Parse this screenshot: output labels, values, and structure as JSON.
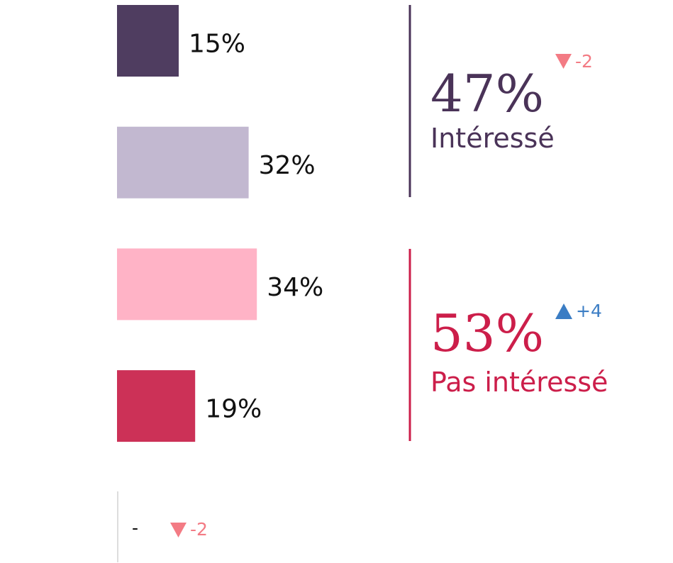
{
  "chart_data": {
    "type": "bar",
    "orientation": "horizontal",
    "values": [
      15,
      32,
      34,
      19
    ],
    "value_labels": [
      "15%",
      "32%",
      "34%",
      "19%"
    ],
    "colors": [
      "#4f3d60",
      "#c2b8d0",
      "#ffb3c6",
      "#cc3157"
    ]
  },
  "summaries": [
    {
      "value_label": "47%",
      "label": "Intéressé",
      "change": "-2",
      "color": "#4a3358"
    },
    {
      "value_label": "53%",
      "label": "Pas intéressé",
      "change": "+4",
      "color": "#cc1e4a"
    }
  ],
  "footer": {
    "value": "-",
    "change": "-2"
  }
}
